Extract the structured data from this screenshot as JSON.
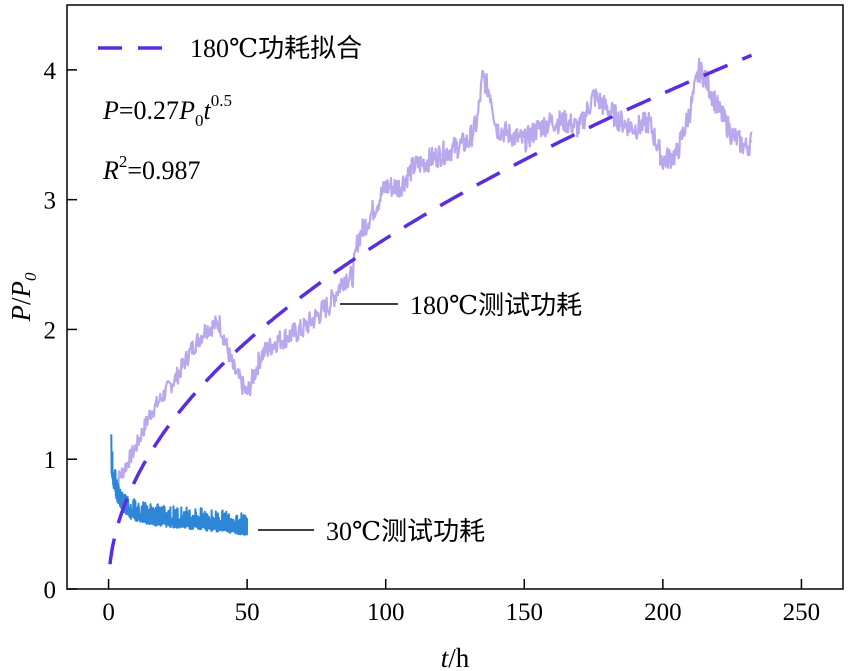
{
  "chart_data": {
    "type": "line",
    "xlabel": "t/h",
    "ylabel": "P/P0",
    "xlim": [
      -15,
      265
    ],
    "ylim": [
      0,
      4.5
    ],
    "xticks": [
      0,
      50,
      100,
      150,
      200,
      250
    ],
    "yticks": [
      0,
      1,
      2,
      3,
      4
    ],
    "grid": false,
    "legend_position": "top-left",
    "legend": {
      "label": "180℃功耗拟合",
      "formula": "P=0.27P0t^0.5",
      "formula_parts": {
        "P": "P",
        "eq_coef": "=0.27",
        "P0_base": "P",
        "P0_sub": "0",
        "t": "t",
        "exp": "0.5"
      },
      "r2_parts": {
        "R": "R",
        "sup": "2",
        "value": "=0.987"
      }
    },
    "series": [
      {
        "name": "180℃测试功耗",
        "color": "#b9a8ec",
        "style": "noisy-line",
        "x": [
          2,
          5,
          10,
          15,
          20,
          25,
          30,
          35,
          40,
          45,
          50,
          55,
          60,
          65,
          70,
          75,
          80,
          85,
          88,
          90,
          95,
          100,
          105,
          110,
          115,
          120,
          125,
          130,
          133,
          135,
          138,
          140,
          145,
          150,
          155,
          160,
          165,
          170,
          175,
          180,
          185,
          190,
          195,
          200,
          205,
          210,
          213,
          215,
          220,
          225,
          230,
          232
        ],
        "y": [
          0.8,
          0.9,
          1.1,
          1.35,
          1.5,
          1.65,
          1.85,
          2.0,
          2.05,
          1.7,
          1.5,
          1.8,
          1.9,
          1.95,
          2.0,
          2.1,
          2.2,
          2.4,
          2.4,
          2.7,
          2.9,
          3.1,
          3.1,
          3.25,
          3.3,
          3.35,
          3.4,
          3.45,
          3.6,
          3.95,
          3.8,
          3.55,
          3.5,
          3.45,
          3.55,
          3.6,
          3.6,
          3.55,
          3.8,
          3.7,
          3.6,
          3.55,
          3.6,
          3.3,
          3.35,
          3.7,
          4.0,
          3.95,
          3.7,
          3.5,
          3.4,
          3.45
        ]
      },
      {
        "name": "30℃测试功耗",
        "color": "#2e86d6",
        "style": "noisy-band",
        "x": [
          1,
          2,
          3,
          5,
          8,
          12,
          16,
          20,
          25,
          30,
          35,
          40,
          45,
          50
        ],
        "y": [
          0.9,
          0.8,
          0.72,
          0.64,
          0.58,
          0.55,
          0.53,
          0.52,
          0.51,
          0.5,
          0.49,
          0.48,
          0.47,
          0.45
        ]
      },
      {
        "name": "180℃功耗拟合",
        "color": "#5b2de0",
        "style": "dashed",
        "formula": "0.27*t^0.5",
        "x": [
          0,
          1,
          2,
          4,
          8,
          15,
          25,
          40,
          60,
          80,
          100,
          130,
          160,
          190,
          220,
          232
        ],
        "y": [
          0,
          0.27,
          0.38,
          0.54,
          0.76,
          1.05,
          1.35,
          1.71,
          2.09,
          2.41,
          2.7,
          3.08,
          3.42,
          3.72,
          4.0,
          4.11
        ]
      }
    ],
    "annotations": [
      {
        "text": "180℃测试功耗",
        "target_x": 82,
        "target_y": 2.2
      },
      {
        "text": "30℃测试功耗",
        "target_x": 50,
        "target_y": 0.45
      }
    ]
  }
}
